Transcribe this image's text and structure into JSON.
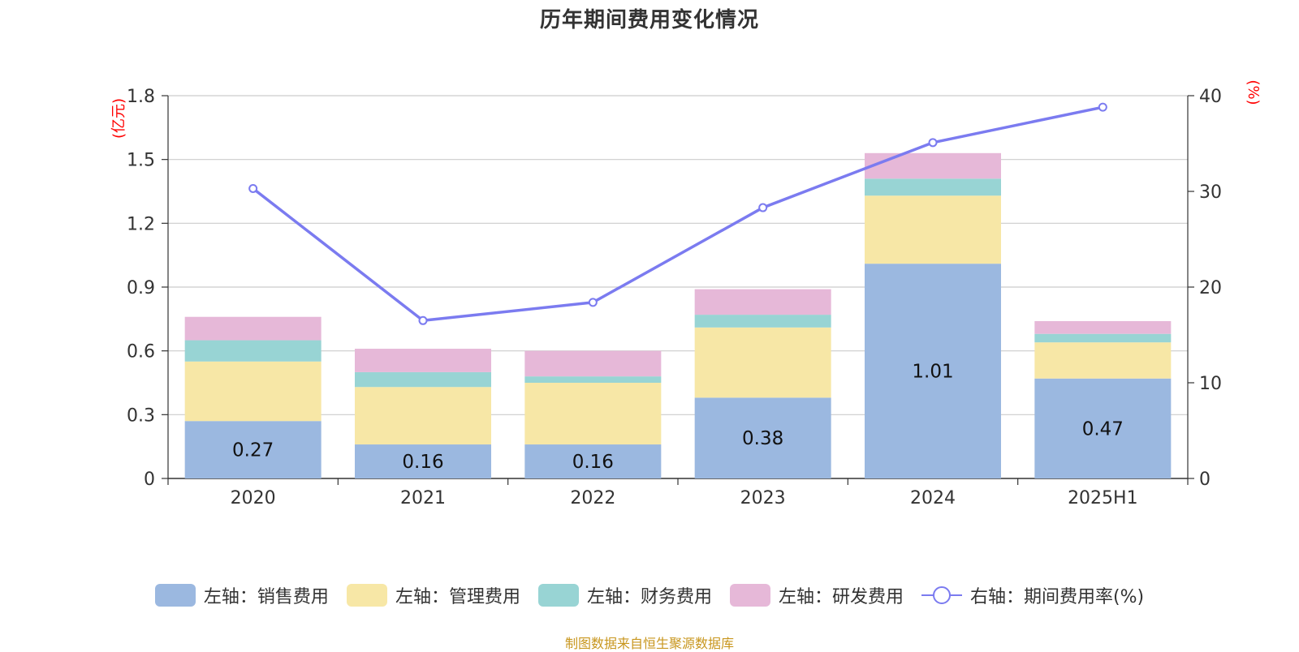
{
  "title": "历年期间费用变化情况",
  "source": "制图数据来自恒生聚源数据库",
  "chart_data": {
    "type": "bar",
    "stacked": true,
    "categories": [
      "2020",
      "2021",
      "2022",
      "2023",
      "2024",
      "2025H1"
    ],
    "y_left": {
      "unit": "(亿元)",
      "ylim": [
        0,
        1.8
      ],
      "ticks": [
        0,
        0.3,
        0.6,
        0.9,
        1.2,
        1.5,
        1.8
      ],
      "tick_labels": [
        "0",
        "0.3",
        "0.6",
        "0.9",
        "1.2",
        "1.5",
        "1.8"
      ]
    },
    "y_right": {
      "unit": "(%)",
      "ylim": [
        0,
        40
      ],
      "ticks": [
        0,
        10,
        20,
        30,
        40
      ]
    },
    "series": [
      {
        "name": "左轴：销售费用",
        "type": "bar",
        "axis": "left",
        "color": "#9bb8e0",
        "values": [
          0.27,
          0.16,
          0.16,
          0.38,
          1.01,
          0.47
        ],
        "labels": [
          "0.27",
          "0.16",
          "0.16",
          "0.38",
          "1.01",
          "0.47"
        ]
      },
      {
        "name": "左轴：管理费用",
        "type": "bar",
        "axis": "left",
        "color": "#f7e7a6",
        "values": [
          0.28,
          0.27,
          0.29,
          0.33,
          0.32,
          0.17
        ]
      },
      {
        "name": "左轴：财务费用",
        "type": "bar",
        "axis": "left",
        "color": "#98d4d4",
        "values": [
          0.1,
          0.07,
          0.03,
          0.06,
          0.08,
          0.04
        ]
      },
      {
        "name": "左轴：研发费用",
        "type": "bar",
        "axis": "left",
        "color": "#e6b8d8",
        "values": [
          0.11,
          0.11,
          0.12,
          0.12,
          0.12,
          0.06
        ]
      },
      {
        "name": "右轴：期间费用率(%)",
        "type": "line",
        "axis": "right",
        "color": "#7b7bf0",
        "values": [
          30.3,
          16.5,
          18.4,
          28.3,
          35.1,
          38.8
        ]
      }
    ],
    "grid": true,
    "legend_position": "bottom"
  }
}
